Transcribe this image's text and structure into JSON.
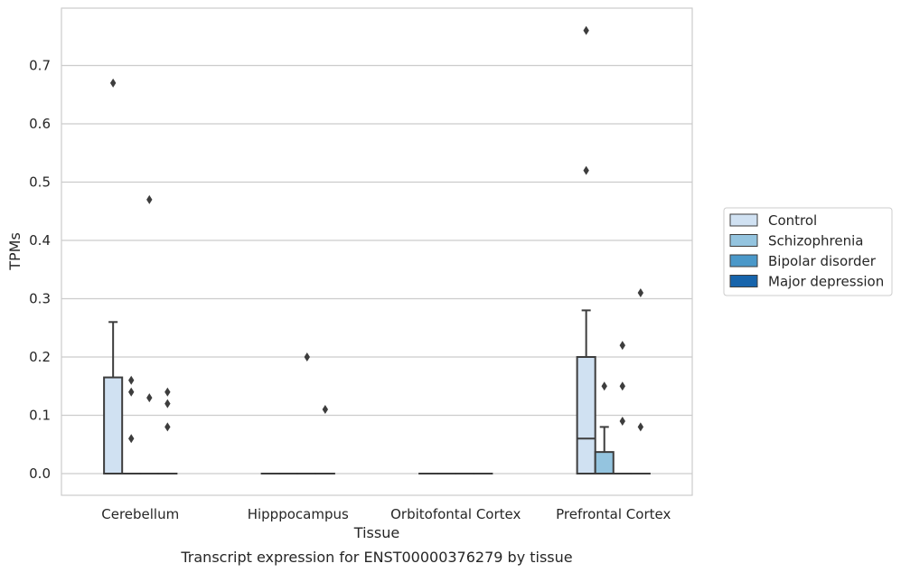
{
  "chart_data": {
    "type": "box",
    "title": "",
    "caption": "Transcript expression for ENST00000376279 by tissue",
    "xlabel": "Tissue",
    "ylabel": "TPMs",
    "ylim": [
      -0.037,
      0.8
    ],
    "yticks": [
      0.0,
      0.1,
      0.2,
      0.3,
      0.4,
      0.5,
      0.6,
      0.7
    ],
    "ytick_labels": [
      "0.0",
      "0.1",
      "0.2",
      "0.3",
      "0.4",
      "0.5",
      "0.6",
      "0.7"
    ],
    "grid": "horizontal",
    "legend_position": "right",
    "categories": [
      "Cerebellum",
      "Hipppocampus",
      "Orbitofontal Cortex",
      "Prefrontal Cortex"
    ],
    "series": [
      {
        "name": "Control",
        "color": "#d0e1f2",
        "boxes": [
          {
            "q1": 0.0,
            "median": 0.0,
            "q3": 0.165,
            "whisker_low": 0.0,
            "whisker_high": 0.26,
            "outliers": [
              0.67
            ]
          },
          {
            "q1": 0.0,
            "median": 0.0,
            "q3": 0.0,
            "whisker_low": 0.0,
            "whisker_high": 0.0,
            "outliers": []
          },
          {
            "q1": 0.0,
            "median": 0.0,
            "q3": 0.0,
            "whisker_low": 0.0,
            "whisker_high": 0.0,
            "outliers": []
          },
          {
            "q1": 0.0,
            "median": 0.06,
            "q3": 0.2,
            "whisker_low": 0.0,
            "whisker_high": 0.28,
            "outliers": [
              0.76,
              0.52
            ]
          }
        ]
      },
      {
        "name": "Schizophrenia",
        "color": "#94c4df",
        "boxes": [
          {
            "q1": 0.0,
            "median": 0.0,
            "q3": 0.0,
            "whisker_low": 0.0,
            "whisker_high": 0.0,
            "outliers": [
              0.16,
              0.14,
              0.06
            ]
          },
          {
            "q1": 0.0,
            "median": 0.0,
            "q3": 0.0,
            "whisker_low": 0.0,
            "whisker_high": 0.0,
            "outliers": []
          },
          {
            "q1": 0.0,
            "median": 0.0,
            "q3": 0.0,
            "whisker_low": 0.0,
            "whisker_high": 0.0,
            "outliers": []
          },
          {
            "q1": 0.0,
            "median": 0.0,
            "q3": 0.037,
            "whisker_low": 0.0,
            "whisker_high": 0.08,
            "outliers": [
              0.15
            ]
          }
        ]
      },
      {
        "name": "Bipolar disorder",
        "color": "#4a98c9",
        "boxes": [
          {
            "q1": 0.0,
            "median": 0.0,
            "q3": 0.0,
            "whisker_low": 0.0,
            "whisker_high": 0.0,
            "outliers": [
              0.47,
              0.13
            ]
          },
          {
            "q1": 0.0,
            "median": 0.0,
            "q3": 0.0,
            "whisker_low": 0.0,
            "whisker_high": 0.0,
            "outliers": [
              0.2
            ]
          },
          {
            "q1": 0.0,
            "median": 0.0,
            "q3": 0.0,
            "whisker_low": 0.0,
            "whisker_high": 0.0,
            "outliers": []
          },
          {
            "q1": 0.0,
            "median": 0.0,
            "q3": 0.0,
            "whisker_low": 0.0,
            "whisker_high": 0.0,
            "outliers": [
              0.22,
              0.15,
              0.09
            ]
          }
        ]
      },
      {
        "name": "Major depression",
        "color": "#1764ab",
        "boxes": [
          {
            "q1": 0.0,
            "median": 0.0,
            "q3": 0.0,
            "whisker_low": 0.0,
            "whisker_high": 0.0,
            "outliers": [
              0.14,
              0.12,
              0.08
            ]
          },
          {
            "q1": 0.0,
            "median": 0.0,
            "q3": 0.0,
            "whisker_low": 0.0,
            "whisker_high": 0.0,
            "outliers": [
              0.11
            ]
          },
          {
            "q1": 0.0,
            "median": 0.0,
            "q3": 0.0,
            "whisker_low": 0.0,
            "whisker_high": 0.0,
            "outliers": []
          },
          {
            "q1": 0.0,
            "median": 0.0,
            "q3": 0.0,
            "whisker_low": 0.0,
            "whisker_high": 0.0,
            "outliers": [
              0.31,
              0.08
            ]
          }
        ]
      }
    ]
  }
}
